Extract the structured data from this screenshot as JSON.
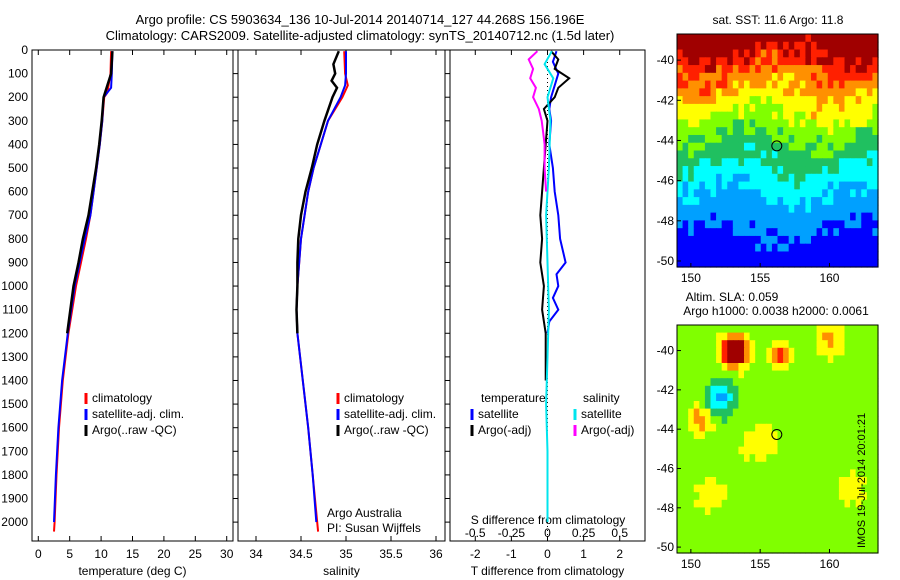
{
  "header": {
    "line1": "Argo profile: CS 5903634_136 10-Jul-2014 20140714_127 44.268S 156.196E",
    "line2": "Climatology: CARS2009. Satellite-adjusted climatology: synTS_20140712.nc (1.5d later)"
  },
  "stamp": "IMOS 19-Jul-2014 20:01:21",
  "chart_data": [
    {
      "type": "line",
      "id": "temperature",
      "xlabel": "temperature (deg C)",
      "xlim": [
        -1,
        31
      ],
      "xticks": [
        0,
        5,
        10,
        15,
        20,
        25,
        30
      ],
      "ylim": [
        2080,
        0
      ],
      "yticks": [
        0,
        100,
        200,
        300,
        400,
        500,
        600,
        700,
        800,
        900,
        1000,
        1100,
        1200,
        1300,
        1400,
        1500,
        1600,
        1700,
        1800,
        1900,
        2000
      ],
      "legend": [
        "climatology",
        "satellite-adj. clim.",
        "Argo(..raw -QC)"
      ],
      "series": [
        {
          "name": "climatology",
          "color": "#ff0000",
          "depth": [
            5,
            100,
            180,
            200,
            300,
            400,
            500,
            600,
            700,
            800,
            900,
            1000,
            1200,
            1400,
            1600,
            1800,
            2000,
            2040
          ],
          "values": [
            11.6,
            11.5,
            11.0,
            10.5,
            10.2,
            9.8,
            9.3,
            8.8,
            8.3,
            7.6,
            6.8,
            6.0,
            4.8,
            3.9,
            3.3,
            2.9,
            2.6,
            2.5
          ]
        },
        {
          "name": "satellite-adj. clim.",
          "color": "#0000ff",
          "depth": [
            5,
            100,
            160,
            200,
            300,
            400,
            500,
            600,
            700,
            800,
            900,
            1000,
            1200,
            1400,
            1600,
            1800,
            2000
          ],
          "values": [
            11.8,
            11.7,
            11.6,
            10.4,
            10.2,
            9.8,
            9.3,
            8.8,
            8.3,
            7.4,
            6.6,
            5.8,
            4.7,
            3.8,
            3.2,
            2.8,
            2.5
          ]
        },
        {
          "name": "Argo(..raw -QC)",
          "color": "#000000",
          "depth": [
            5,
            100,
            200,
            300,
            400,
            500,
            600,
            700,
            800,
            900,
            1000,
            1200
          ],
          "values": [
            11.8,
            11.6,
            10.4,
            10.1,
            9.7,
            9.2,
            8.6,
            8.0,
            7.1,
            6.4,
            5.6,
            4.6
          ]
        }
      ]
    },
    {
      "type": "line",
      "id": "salinity",
      "xlabel": "salinity",
      "xlim": [
        33.8,
        36.1
      ],
      "xticks": [
        34,
        34.5,
        35,
        35.5,
        36
      ],
      "ylim": [
        2080,
        0
      ],
      "legend": [
        "climatology",
        "satellite-adj. clim.",
        "Argo(..raw -QC)"
      ],
      "credit1": "Argo Australia",
      "credit2": "PI: Susan Wijffels",
      "series": [
        {
          "name": "climatology",
          "color": "#ff0000",
          "depth": [
            5,
            100,
            150,
            200,
            300,
            400,
            500,
            600,
            700,
            800,
            900,
            1000,
            1100,
            1200,
            1300,
            1400,
            1600,
            1800,
            2000,
            2040
          ],
          "values": [
            34.98,
            34.99,
            35.02,
            34.96,
            34.8,
            34.72,
            34.64,
            34.58,
            34.54,
            34.5,
            34.48,
            34.46,
            34.45,
            34.46,
            34.49,
            34.52,
            34.58,
            34.63,
            34.68,
            34.69
          ]
        },
        {
          "name": "satellite-adj. clim.",
          "color": "#0000ff",
          "depth": [
            5,
            100,
            150,
            200,
            300,
            400,
            500,
            600,
            700,
            800,
            900,
            1000,
            1100,
            1200,
            1300,
            1400,
            1600,
            1800,
            2000
          ],
          "values": [
            35.0,
            35.0,
            34.99,
            34.94,
            34.8,
            34.72,
            34.64,
            34.58,
            34.54,
            34.5,
            34.48,
            34.46,
            34.45,
            34.46,
            34.49,
            34.52,
            34.58,
            34.63,
            34.67
          ]
        },
        {
          "name": "Argo(..raw -QC)",
          "color": "#000000",
          "depth": [
            5,
            60,
            100,
            130,
            160,
            200,
            300,
            400,
            500,
            600,
            700,
            800,
            900,
            1000,
            1100,
            1200
          ],
          "values": [
            34.92,
            34.86,
            34.88,
            34.84,
            34.9,
            34.85,
            34.76,
            34.68,
            34.62,
            34.55,
            34.5,
            34.47,
            34.46,
            34.46,
            34.45,
            34.46
          ]
        }
      ]
    },
    {
      "type": "line",
      "id": "difference",
      "xlabel": "T difference from climatology",
      "xlabel2": "S difference from climatology",
      "xlim": [
        -2.7,
        2.7
      ],
      "xticks": [
        -2,
        -1,
        0,
        1,
        2
      ],
      "xticks2": [
        -0.5,
        -0.25,
        0,
        0.25,
        0.5
      ],
      "xticks2_labels": [
        "-0.5",
        "-0.25",
        "0",
        "0.25",
        "0.5"
      ],
      "ylim": [
        2080,
        0
      ],
      "legend_left_title": "temperature",
      "legend_right_title": "salinity",
      "legend_left": [
        "satellite",
        "Argo(-adj)"
      ],
      "legend_right": [
        "satellite",
        "Argo(-adj)"
      ],
      "series": [
        {
          "name": "T satellite",
          "color": "#0000ff",
          "depth": [
            5,
            50,
            100,
            150,
            200,
            250,
            300,
            400,
            500,
            600,
            700,
            800,
            900,
            950,
            1000,
            1050,
            1100,
            1150,
            1200
          ],
          "values": [
            0.25,
            0.15,
            0.3,
            0.2,
            0.1,
            0.05,
            0.1,
            0.05,
            0.15,
            0.2,
            0.3,
            0.35,
            0.5,
            0.25,
            0.3,
            0.15,
            0.3,
            0.05,
            0.0
          ]
        },
        {
          "name": "T Argo(-adj)",
          "color": "#000000",
          "depth": [
            5,
            40,
            80,
            120,
            160,
            200,
            250,
            300,
            400,
            500,
            600,
            700,
            800,
            900,
            1000,
            1100,
            1200,
            1300,
            1400
          ],
          "values": [
            0.1,
            0.3,
            0.2,
            0.6,
            0.3,
            0.2,
            -0.1,
            0.0,
            -0.05,
            -0.1,
            -0.15,
            -0.2,
            -0.15,
            -0.2,
            -0.1,
            -0.15,
            -0.05,
            -0.05,
            -0.05
          ]
        },
        {
          "name": "S satellite",
          "color": "#00e5ee",
          "depth": [
            5,
            60,
            120,
            200,
            300,
            500,
            700,
            900,
            1100,
            1300,
            1500,
            1700,
            1900,
            2000
          ],
          "values": [
            0.03,
            -0.02,
            0.04,
            0.0,
            0.02,
            0.01,
            -0.01,
            0.0,
            0.01,
            0.0,
            -0.01,
            0.0,
            0.0,
            0.0
          ]
        },
        {
          "name": "S Argo(-adj)",
          "color": "#ff00ff",
          "depth": [
            5,
            40,
            80,
            120,
            160,
            200,
            250,
            300,
            350,
            400,
            500,
            600
          ],
          "values": [
            -0.07,
            -0.13,
            -0.1,
            -0.12,
            -0.08,
            -0.1,
            -0.06,
            -0.04,
            -0.03,
            -0.02,
            -0.02,
            -0.01
          ]
        }
      ]
    },
    {
      "type": "heatmap",
      "id": "sst-map",
      "title": "sat. SST: 11.6 Argo: 11.8",
      "xlim": [
        149,
        163.5
      ],
      "ylim": [
        -50.3,
        -38.7
      ],
      "xticks": [
        150,
        155,
        160
      ],
      "yticks": [
        -40,
        -42,
        -44,
        -46,
        -48,
        -50
      ],
      "marker": {
        "lon": 156.2,
        "lat": -44.27
      }
    },
    {
      "type": "heatmap",
      "id": "sla-map",
      "title": "Altim. SLA: 0.059",
      "subtitle": "Argo h1000: 0.0038 h2000: 0.0061",
      "xlim": [
        149,
        163.5
      ],
      "ylim": [
        -50.3,
        -38.7
      ],
      "xticks": [
        150,
        155,
        160
      ],
      "yticks": [
        -40,
        -42,
        -44,
        -46,
        -48,
        -50
      ],
      "marker": {
        "lon": 156.2,
        "lat": -44.27
      }
    }
  ]
}
